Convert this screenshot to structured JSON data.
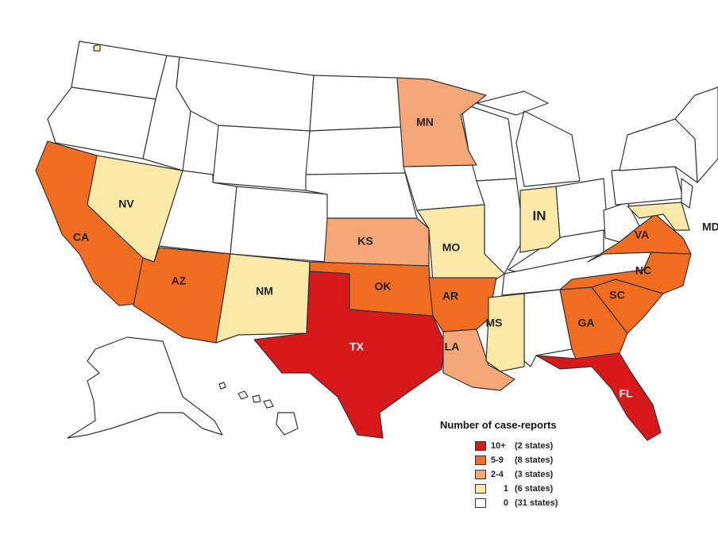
{
  "colors": {
    "c10": "#d7191c",
    "c59": "#f26d21",
    "c24": "#f5a777",
    "c1": "#fbeaa7",
    "c0": "#ffffff"
  },
  "labels": {
    "CA": "CA",
    "NV": "NV",
    "AZ": "AZ",
    "NM": "NM",
    "TX": "TX",
    "OK": "OK",
    "KS": "KS",
    "MO": "MO",
    "AR": "AR",
    "LA": "LA",
    "MS": "MS",
    "MN": "MN",
    "IN": "IN",
    "GA": "GA",
    "SC": "SC",
    "NC": "NC",
    "VA": "VA",
    "FL": "FL",
    "MD": "MD"
  },
  "legend": {
    "title": "Number of case-reports",
    "items": [
      {
        "range": "10+",
        "count": "(2 states)",
        "color": "#d7191c"
      },
      {
        "range": "5-9",
        "count": "(8 states)",
        "color": "#f26d21"
      },
      {
        "range": "2-4",
        "count": "(3 states)",
        "color": "#f5a777"
      },
      {
        "range": "1",
        "count": "(6 states)",
        "color": "#fbeaa7"
      },
      {
        "range": "0",
        "count": "(31 states)",
        "color": "#ffffff"
      }
    ]
  }
}
